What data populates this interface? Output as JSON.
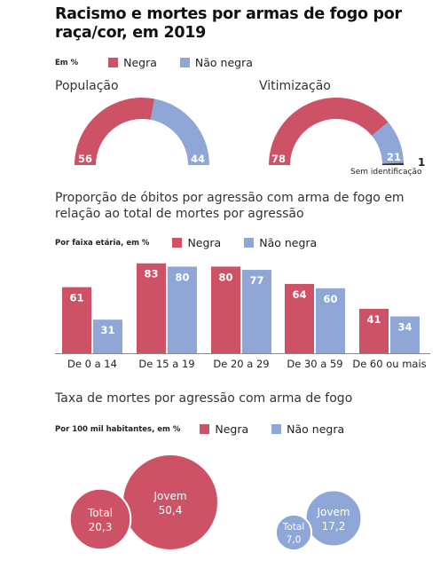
{
  "title": "Racismo e mortes por armas de fogo por raça/cor, em 2019",
  "colors": {
    "negra": "#cd5266",
    "nao_negra": "#8ea7d7"
  },
  "legend1": {
    "label": "Em %",
    "negra": "Negra",
    "nao_negra": "Não negra"
  },
  "legend2": {
    "label": "Por faixa etária, em %",
    "negra": "Negra",
    "nao_negra": "Não negra"
  },
  "legend3": {
    "label": "Por 100 mil habitantes, em %",
    "negra": "Negra",
    "nao_negra": "Não negra"
  },
  "section2_title": "Proporção de óbitos por agressão com arma de fogo em relação ao total de mortes por agressão",
  "section3_title": "Taxa de mortes por agressão com arma de fogo",
  "sem_identificacao": {
    "label": "Sem identificação",
    "value": "1"
  },
  "chart_data": [
    {
      "type": "pie",
      "title": "População",
      "labels": [
        "Negra",
        "Não negra"
      ],
      "values": [
        56,
        44
      ]
    },
    {
      "type": "pie",
      "title": "Vitimização",
      "labels": [
        "Negra",
        "Não negra",
        "Sem identificação"
      ],
      "values": [
        78,
        21,
        1
      ]
    },
    {
      "type": "bar",
      "categories": [
        "De 0 a 14",
        "De 15 a 19",
        "De 20 a 29",
        "De 30 a 59",
        "De 60 ou mais"
      ],
      "series": [
        {
          "name": "Negra",
          "values": [
            61,
            83,
            80,
            64,
            41
          ]
        },
        {
          "name": "Não negra",
          "values": [
            31,
            80,
            77,
            60,
            34
          ]
        }
      ],
      "ylim": [
        0,
        100
      ]
    },
    {
      "type": "scatter",
      "groups": [
        {
          "name": "Negra",
          "circles": [
            {
              "label": "Total",
              "value": "20,3",
              "num": 20.3
            },
            {
              "label": "Jovem",
              "value": "50,4",
              "num": 50.4
            }
          ]
        },
        {
          "name": "Não negra",
          "circles": [
            {
              "label": "Total",
              "value": "7,0",
              "num": 7.0
            },
            {
              "label": "Jovem",
              "value": "17,2",
              "num": 17.2
            }
          ]
        }
      ]
    }
  ]
}
